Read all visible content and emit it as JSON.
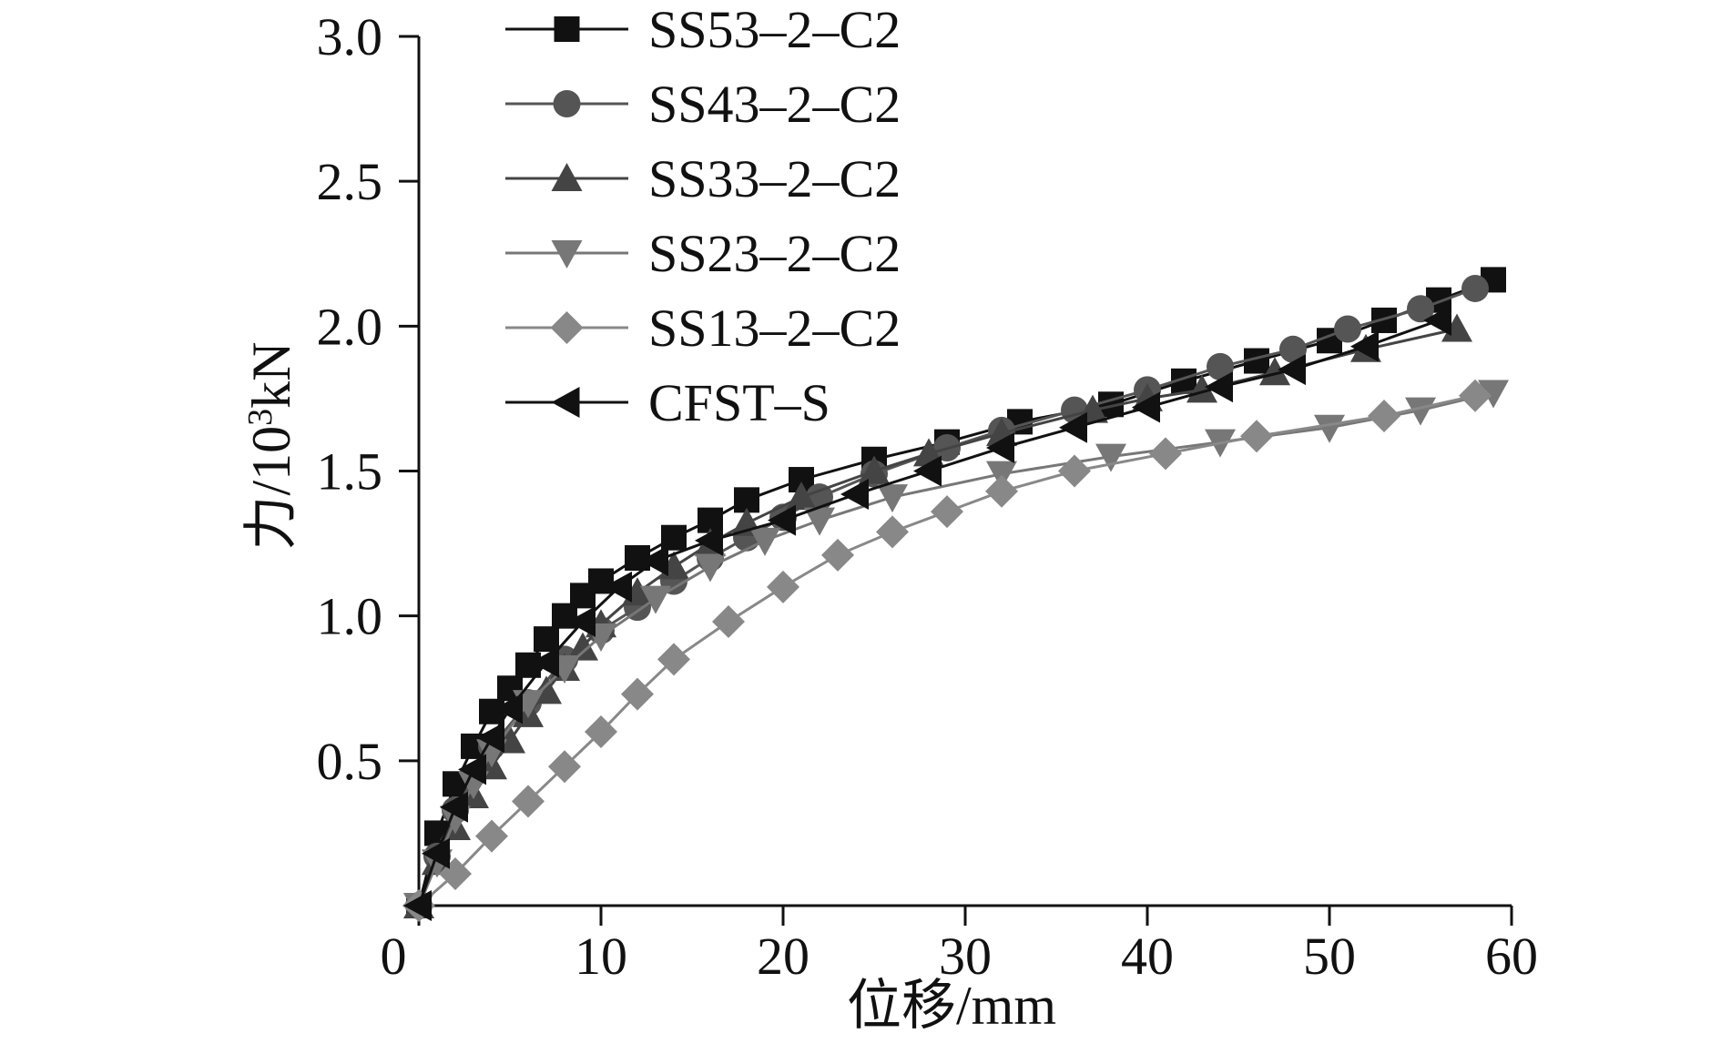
{
  "chart_data": {
    "type": "line",
    "title": "",
    "xlabel": "位移/mm",
    "ylabel": "力/10³kN",
    "ylabel_main": "力/10",
    "ylabel_sup": "3",
    "ylabel_tail": "kN",
    "xlim": [
      0,
      60
    ],
    "ylim": [
      0,
      3.0
    ],
    "xticks": [
      0,
      10,
      20,
      30,
      40,
      50,
      60
    ],
    "xtick_labels": [
      "0",
      "10",
      "20",
      "30",
      "40",
      "50",
      "60"
    ],
    "yticks": [
      0.5,
      1.0,
      1.5,
      2.0,
      2.5,
      3.0
    ],
    "ytick_labels": [
      "0.5",
      "1.0",
      "1.5",
      "2.0",
      "2.5",
      "3.0"
    ],
    "grid": false,
    "legend_position": "top-left",
    "series": [
      {
        "name": "SS53–2–C2",
        "marker": "square",
        "color": "#111111",
        "x": [
          0,
          1,
          2,
          3,
          4,
          5,
          6,
          7,
          8,
          9,
          10,
          12,
          14,
          16,
          18,
          21,
          25,
          29,
          33,
          38,
          42,
          46,
          50,
          53,
          56,
          59
        ],
        "y": [
          0,
          0.25,
          0.42,
          0.55,
          0.67,
          0.75,
          0.83,
          0.92,
          1.0,
          1.07,
          1.12,
          1.2,
          1.27,
          1.33,
          1.4,
          1.47,
          1.54,
          1.6,
          1.67,
          1.73,
          1.81,
          1.88,
          1.95,
          2.02,
          2.09,
          2.16
        ]
      },
      {
        "name": "SS43–2–C2",
        "marker": "circle",
        "color": "#555555",
        "x": [
          0,
          1,
          2,
          4,
          6,
          8,
          10,
          12,
          14,
          16,
          18,
          20,
          22,
          25,
          29,
          32,
          36,
          40,
          44,
          48,
          51,
          55,
          58
        ],
        "y": [
          0,
          0.17,
          0.33,
          0.55,
          0.7,
          0.85,
          0.95,
          1.03,
          1.12,
          1.2,
          1.27,
          1.34,
          1.41,
          1.49,
          1.58,
          1.64,
          1.71,
          1.78,
          1.86,
          1.92,
          1.99,
          2.06,
          2.13
        ]
      },
      {
        "name": "SS33–2–C2",
        "marker": "triangle-up",
        "color": "#444444",
        "x": [
          0,
          1,
          2,
          3,
          4,
          5,
          6,
          7,
          8,
          9,
          10,
          12,
          14,
          16,
          18,
          21,
          25,
          28,
          32,
          37,
          40,
          43,
          47,
          52,
          57
        ],
        "y": [
          0,
          0.15,
          0.27,
          0.38,
          0.48,
          0.57,
          0.66,
          0.74,
          0.82,
          0.89,
          0.97,
          1.08,
          1.17,
          1.25,
          1.32,
          1.41,
          1.5,
          1.56,
          1.63,
          1.71,
          1.75,
          1.78,
          1.84,
          1.92,
          1.99
        ]
      },
      {
        "name": "SS23–2–C2",
        "marker": "triangle-down",
        "color": "#777777",
        "x": [
          0,
          1,
          2,
          3,
          4,
          6,
          8,
          10,
          13,
          16,
          19,
          22,
          26,
          32,
          38,
          44,
          50,
          55,
          59
        ],
        "y": [
          0,
          0.15,
          0.3,
          0.42,
          0.53,
          0.7,
          0.82,
          0.93,
          1.06,
          1.17,
          1.26,
          1.33,
          1.41,
          1.49,
          1.55,
          1.6,
          1.65,
          1.71,
          1.77
        ]
      },
      {
        "name": "SS13–2–C2",
        "marker": "diamond",
        "color": "#888888",
        "x": [
          0,
          2,
          4,
          6,
          8,
          10,
          12,
          14,
          17,
          20,
          23,
          26,
          29,
          32,
          36,
          41,
          46,
          53,
          58
        ],
        "y": [
          0,
          0.11,
          0.24,
          0.36,
          0.48,
          0.6,
          0.73,
          0.85,
          0.98,
          1.1,
          1.21,
          1.29,
          1.36,
          1.43,
          1.5,
          1.56,
          1.62,
          1.69,
          1.76
        ]
      },
      {
        "name": "CFST–S",
        "marker": "triangle-left",
        "color": "#111111",
        "x": [
          0,
          1,
          2,
          3,
          4,
          5,
          7,
          9,
          11,
          13,
          16,
          20,
          24,
          28,
          32,
          36,
          40,
          44,
          48,
          52,
          56
        ],
        "y": [
          0,
          0.18,
          0.34,
          0.47,
          0.58,
          0.68,
          0.84,
          0.98,
          1.1,
          1.19,
          1.26,
          1.33,
          1.42,
          1.5,
          1.58,
          1.65,
          1.72,
          1.79,
          1.85,
          1.93,
          2.02
        ]
      }
    ]
  }
}
